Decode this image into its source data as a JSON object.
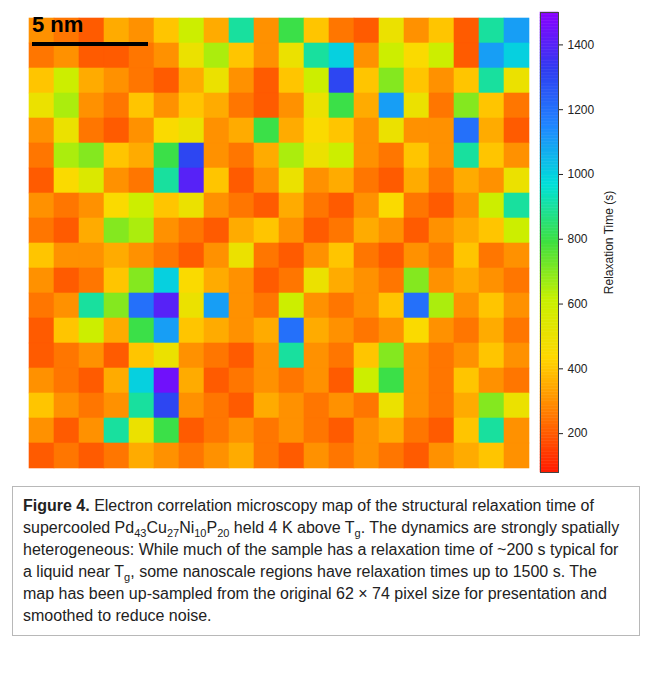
{
  "chart_data": {
    "type": "heatmap",
    "scale_bar": "5 nm",
    "grid": false,
    "tick_labels": false,
    "cells": [
      [
        300,
        250,
        200,
        350,
        300,
        400,
        600,
        350,
        900,
        300,
        800,
        400,
        250,
        200,
        500,
        300,
        400,
        200,
        900,
        1100
      ],
      [
        250,
        300,
        200,
        200,
        250,
        300,
        500,
        650,
        400,
        300,
        500,
        900,
        1000,
        300,
        600,
        450,
        600,
        200,
        1100,
        1000
      ],
      [
        400,
        600,
        350,
        300,
        250,
        200,
        350,
        500,
        300,
        200,
        400,
        600,
        1300,
        400,
        700,
        400,
        300,
        400,
        900,
        500
      ],
      [
        500,
        650,
        300,
        250,
        400,
        300,
        400,
        350,
        250,
        200,
        300,
        500,
        800,
        350,
        1100,
        500,
        250,
        700,
        400,
        250
      ],
      [
        300,
        500,
        250,
        200,
        300,
        450,
        500,
        300,
        350,
        800,
        350,
        450,
        400,
        300,
        500,
        300,
        300,
        1200,
        350,
        200
      ],
      [
        250,
        650,
        700,
        400,
        350,
        800,
        1300,
        300,
        250,
        350,
        650,
        500,
        600,
        300,
        250,
        400,
        300,
        900,
        400,
        300
      ],
      [
        200,
        450,
        550,
        300,
        250,
        900,
        1400,
        400,
        200,
        300,
        500,
        300,
        350,
        250,
        200,
        350,
        250,
        350,
        300,
        500
      ],
      [
        300,
        250,
        300,
        450,
        600,
        400,
        500,
        300,
        250,
        200,
        350,
        250,
        200,
        300,
        450,
        250,
        200,
        300,
        600,
        900
      ],
      [
        250,
        200,
        350,
        700,
        650,
        300,
        250,
        200,
        350,
        400,
        300,
        200,
        250,
        350,
        300,
        200,
        300,
        350,
        400,
        600
      ],
      [
        400,
        300,
        300,
        350,
        300,
        250,
        200,
        300,
        500,
        250,
        200,
        300,
        400,
        250,
        200,
        300,
        250,
        400,
        250,
        300
      ],
      [
        300,
        200,
        250,
        400,
        700,
        1000,
        450,
        350,
        300,
        200,
        250,
        500,
        350,
        300,
        250,
        700,
        300,
        350,
        300,
        250
      ],
      [
        250,
        300,
        900,
        700,
        1200,
        1400,
        500,
        1100,
        300,
        250,
        600,
        300,
        250,
        300,
        400,
        1200,
        650,
        300,
        400,
        300
      ],
      [
        200,
        400,
        600,
        350,
        800,
        1100,
        400,
        350,
        300,
        350,
        1200,
        350,
        300,
        250,
        300,
        450,
        300,
        250,
        350,
        250
      ],
      [
        200,
        250,
        300,
        200,
        400,
        500,
        300,
        250,
        200,
        300,
        900,
        300,
        250,
        400,
        700,
        300,
        250,
        300,
        400,
        300
      ],
      [
        300,
        250,
        200,
        350,
        1000,
        1450,
        350,
        200,
        250,
        300,
        250,
        300,
        200,
        600,
        800,
        300,
        250,
        400,
        300,
        250
      ],
      [
        400,
        300,
        250,
        300,
        900,
        1300,
        300,
        250,
        200,
        350,
        300,
        250,
        300,
        250,
        500,
        300,
        250,
        350,
        700,
        500
      ],
      [
        300,
        200,
        300,
        900,
        500,
        800,
        200,
        250,
        300,
        250,
        300,
        250,
        200,
        300,
        350,
        250,
        200,
        400,
        900,
        300
      ],
      [
        200,
        250,
        200,
        250,
        350,
        300,
        250,
        300,
        350,
        250,
        200,
        300,
        250,
        300,
        250,
        200,
        300,
        350,
        400,
        300
      ]
    ],
    "colorbar": {
      "label": "Relaxation Time (s)",
      "lim": [
        80,
        1500
      ],
      "ticks": [
        200,
        400,
        600,
        800,
        1000,
        1200,
        1400
      ]
    }
  },
  "caption": {
    "label": "Figure 4.",
    "text": [
      "Electron correlation microscopy map of the structural relaxation time of supercooled Pd",
      {
        "sub": "43"
      },
      "Cu",
      {
        "sub": "27"
      },
      "Ni",
      {
        "sub": "10"
      },
      "P",
      {
        "sub": "20"
      },
      " held 4 K above T",
      {
        "sub": "g"
      },
      ". The dynamics are strongly spatially heterogeneous: While much of the sample has a relaxation time of ~200 s typical for a liquid near T",
      {
        "sub": "g"
      },
      ", some nanoscale regions have relaxation times up to 1500 s. The map has been up-sampled from the original 62 × 74 pixel size for presentation and smoothed to reduce noise."
    ]
  }
}
